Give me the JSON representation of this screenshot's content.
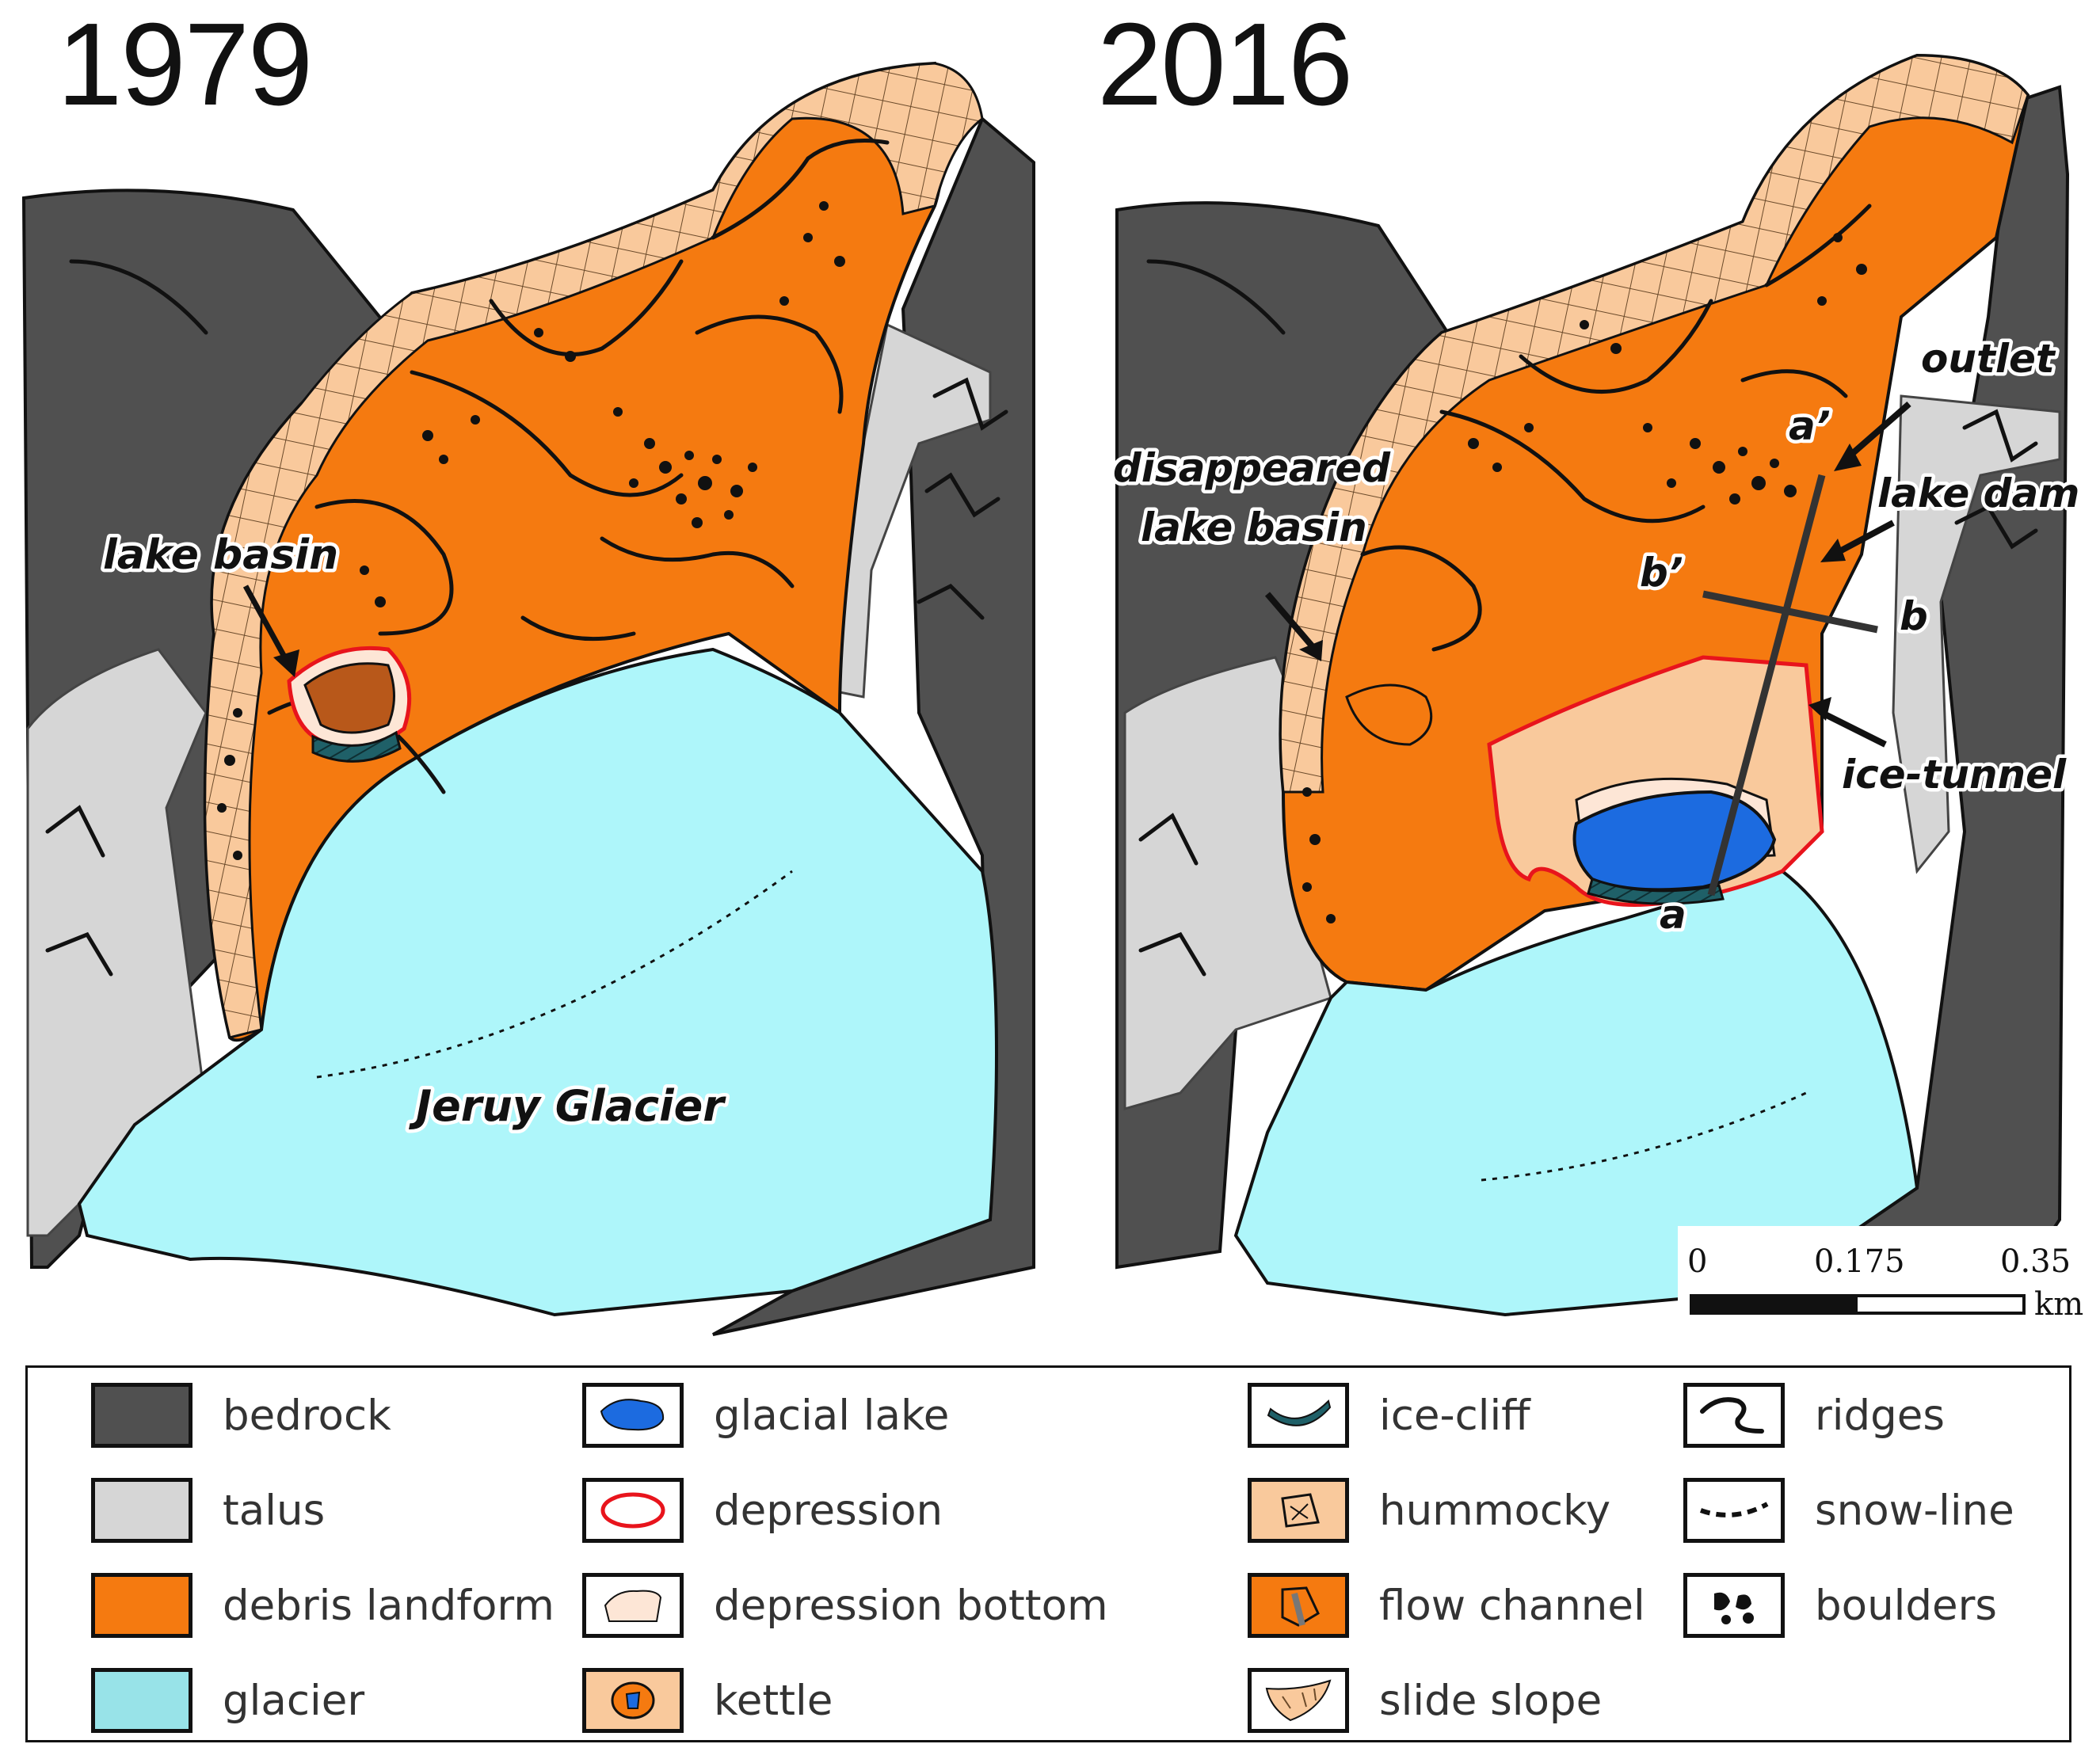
{
  "panels": {
    "left": {
      "year": "1979"
    },
    "right": {
      "year": "2016"
    }
  },
  "annotations": {
    "lake_basin": "lake basin",
    "glacier_name": "Jeruy Glacier",
    "disappeared_1": "disappeared",
    "disappeared_2": "lake basin",
    "outlet": "outlet",
    "lake_dam": "lake dam",
    "ice_tunnel": "ice-tunnel",
    "a_prime": "a’",
    "b_prime": "b’",
    "b": "b",
    "a": "a"
  },
  "scale_bar": {
    "ticks": [
      "0",
      "0.175",
      "0.35"
    ],
    "unit": "km"
  },
  "legend": [
    {
      "key": "bedrock",
      "label": "bedrock",
      "color": "#505050"
    },
    {
      "key": "talus",
      "label": "talus",
      "color": "#d6d6d6"
    },
    {
      "key": "debris-landform",
      "label": "debris landform",
      "color": "#f57a10"
    },
    {
      "key": "glacier",
      "label": "glacier",
      "color": "#98e3e8"
    },
    {
      "key": "glacial-lake",
      "label": "glacial lake",
      "color": "#1c6be0"
    },
    {
      "key": "depression",
      "label": "depression",
      "color": "#e8141c"
    },
    {
      "key": "depression-bottom",
      "label": "depression bottom",
      "color": "#fde6d6"
    },
    {
      "key": "kettle",
      "label": "kettle",
      "color": "#f9c99c"
    },
    {
      "key": "ice-cliff",
      "label": "ice-cliff",
      "color": "#1f6068"
    },
    {
      "key": "hummocky",
      "label": "hummocky",
      "color": "#f9c99c"
    },
    {
      "key": "flow-channel",
      "label": "flow channel",
      "color": "#f57a10"
    },
    {
      "key": "slide-slope",
      "label": "slide slope",
      "color": "#f9c99c"
    },
    {
      "key": "ridges",
      "label": "ridges",
      "color": "#111111"
    },
    {
      "key": "snow-line",
      "label": "snow-line",
      "color": "#111111"
    },
    {
      "key": "boulders",
      "label": "boulders",
      "color": "#111111"
    }
  ]
}
